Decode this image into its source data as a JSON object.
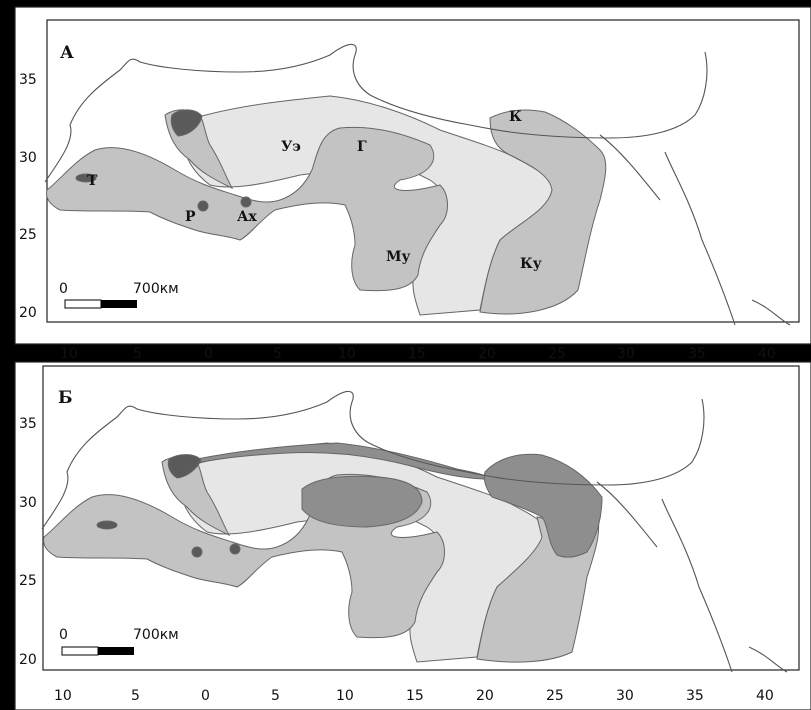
{
  "panels": [
    {
      "letter": "А",
      "region_labels": {
        "T": "Т",
        "R": "Р",
        "Ah": "Ах",
        "Ue": "Уэ",
        "G": "Г",
        "K": "К",
        "Mu": "Му",
        "Ku": "Ку"
      },
      "scale": {
        "zero": "0",
        "distance": "700км"
      }
    },
    {
      "letter": "Б",
      "scale": {
        "zero": "0",
        "distance": "700км"
      }
    }
  ],
  "axes": {
    "x_ticks": [
      "10",
      "5",
      "0",
      "5",
      "10",
      "15",
      "20",
      "25",
      "30",
      "35",
      "40"
    ],
    "y_ticks": [
      "35",
      "30",
      "25",
      "20"
    ]
  },
  "colors": {
    "background": "#000000",
    "map_background": "#ffffff",
    "light_fill": "#e6e6e6",
    "medium_fill": "#c3c3c3",
    "dark_fill": "#8e8e8e",
    "darkest_fill": "#5a5a5a",
    "coast_line": "#555555"
  }
}
